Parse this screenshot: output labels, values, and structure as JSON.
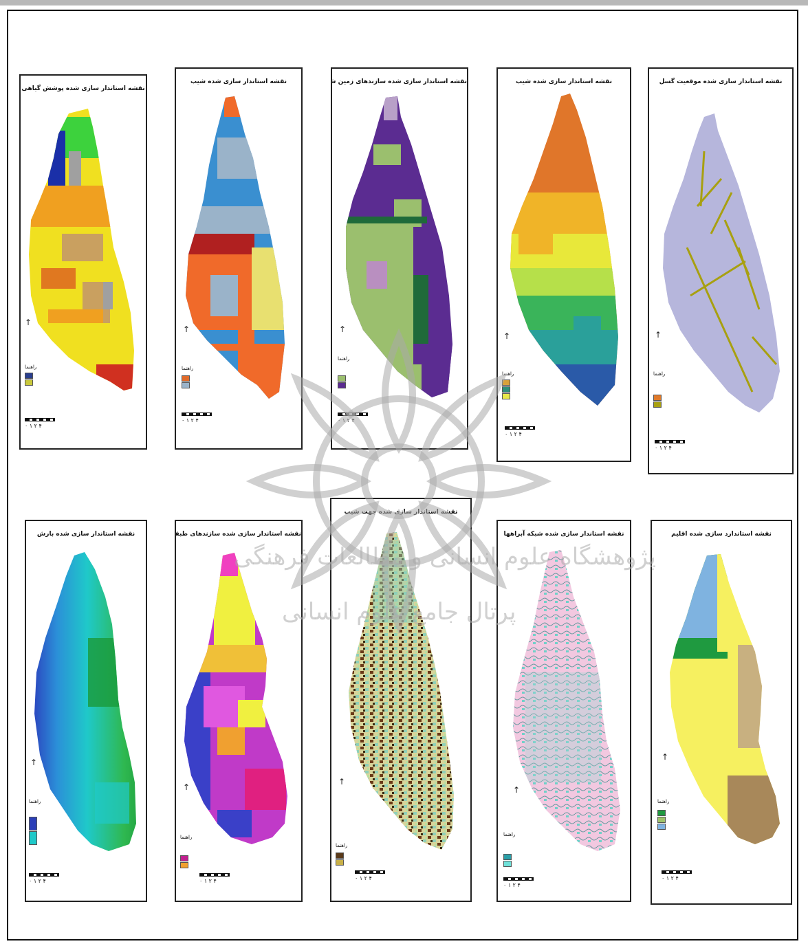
{
  "panels": [
    {
      "id": "p1",
      "title": "نقشه استاندار سازی شده پوشش گیاهی",
      "north": "↑",
      "legend_title": "راهنما",
      "scale_text": "۰ ۱ ۲ ۴",
      "legend_colors": [
        "#2a3f8f",
        "#c9c93c"
      ]
    },
    {
      "id": "p2",
      "title": "نقشه استاندار سازی شده شیب",
      "north": "↑",
      "legend_title": "راهنما",
      "scale_text": "۰ ۱ ۲ ۴",
      "legend_colors": [
        "#e06a2a",
        "#9ab3c9"
      ]
    },
    {
      "id": "p3",
      "title": "نقشه استاندار سازی شده سازندهای زمین شناسی",
      "north": "↑",
      "legend_title": "راهنما",
      "scale_text": "۰ ۱ ۲ ۴",
      "legend_colors": [
        "#9bbf6e",
        "#5b2c91"
      ]
    },
    {
      "id": "p4",
      "title": "نقشه استاندار سازی شده شیب",
      "north": "↑",
      "legend_title": "راهنما",
      "scale_text": "۰ ۱ ۲ ۴",
      "legend_colors": [
        "#d9a13a",
        "#2f8f7a",
        "#e8e84a"
      ]
    },
    {
      "id": "p5",
      "title": "نقشه استاندار سازی شده موقعیت گسل",
      "north": "↑",
      "legend_title": "راهنما",
      "scale_text": "۰ ۱ ۲ ۴",
      "legend_colors": [
        "#e07a2a",
        "#a8a010"
      ]
    },
    {
      "id": "p6",
      "title": "نقشه استاندار سازی شده بارش",
      "north": "↑",
      "legend_title": "راهنما",
      "scale_text": "۰ ۱ ۲ ۴",
      "legend_colors": [
        "#2b3fb8",
        "#1fc9c9"
      ]
    },
    {
      "id": "p7",
      "title": "نقشه استاندار سازی شده سازندهای طبقات ارتفاعی",
      "north": "↑",
      "legend_title": "راهنما",
      "scale_text": "۰ ۱ ۲ ۴",
      "legend_colors": [
        "#c0208f",
        "#f0a030"
      ]
    },
    {
      "id": "p8",
      "title": "نقشه استاندار سازی شده جهت شیب",
      "north": "↑",
      "legend_title": "راهنما",
      "scale_text": "۰ ۱ ۲ ۴",
      "legend_colors": [
        "#5a3a1a",
        "#c8b048"
      ]
    },
    {
      "id": "p9",
      "title": "نقشه استاندار سازی شده شبکه آبراهها",
      "north": "↑",
      "legend_title": "راهنما",
      "scale_text": "۰ ۱ ۲ ۴",
      "legend_colors": [
        "#2a9fa8",
        "#6fe0d8"
      ]
    },
    {
      "id": "p10",
      "title": "نقشه استاندارد سازی شده اقلیم",
      "north": "↑",
      "legend_title": "راهنما",
      "scale_text": "۰ ۱ ۲ ۴",
      "legend_colors": [
        "#1f9a40",
        "#9ec36a",
        "#7fb3e0"
      ]
    }
  ],
  "watermark": {
    "line1": "پژوهشگاه علوم انسانی و مطالعات فرهنگی",
    "line2": "پرتال جامع علوم انسانی"
  }
}
